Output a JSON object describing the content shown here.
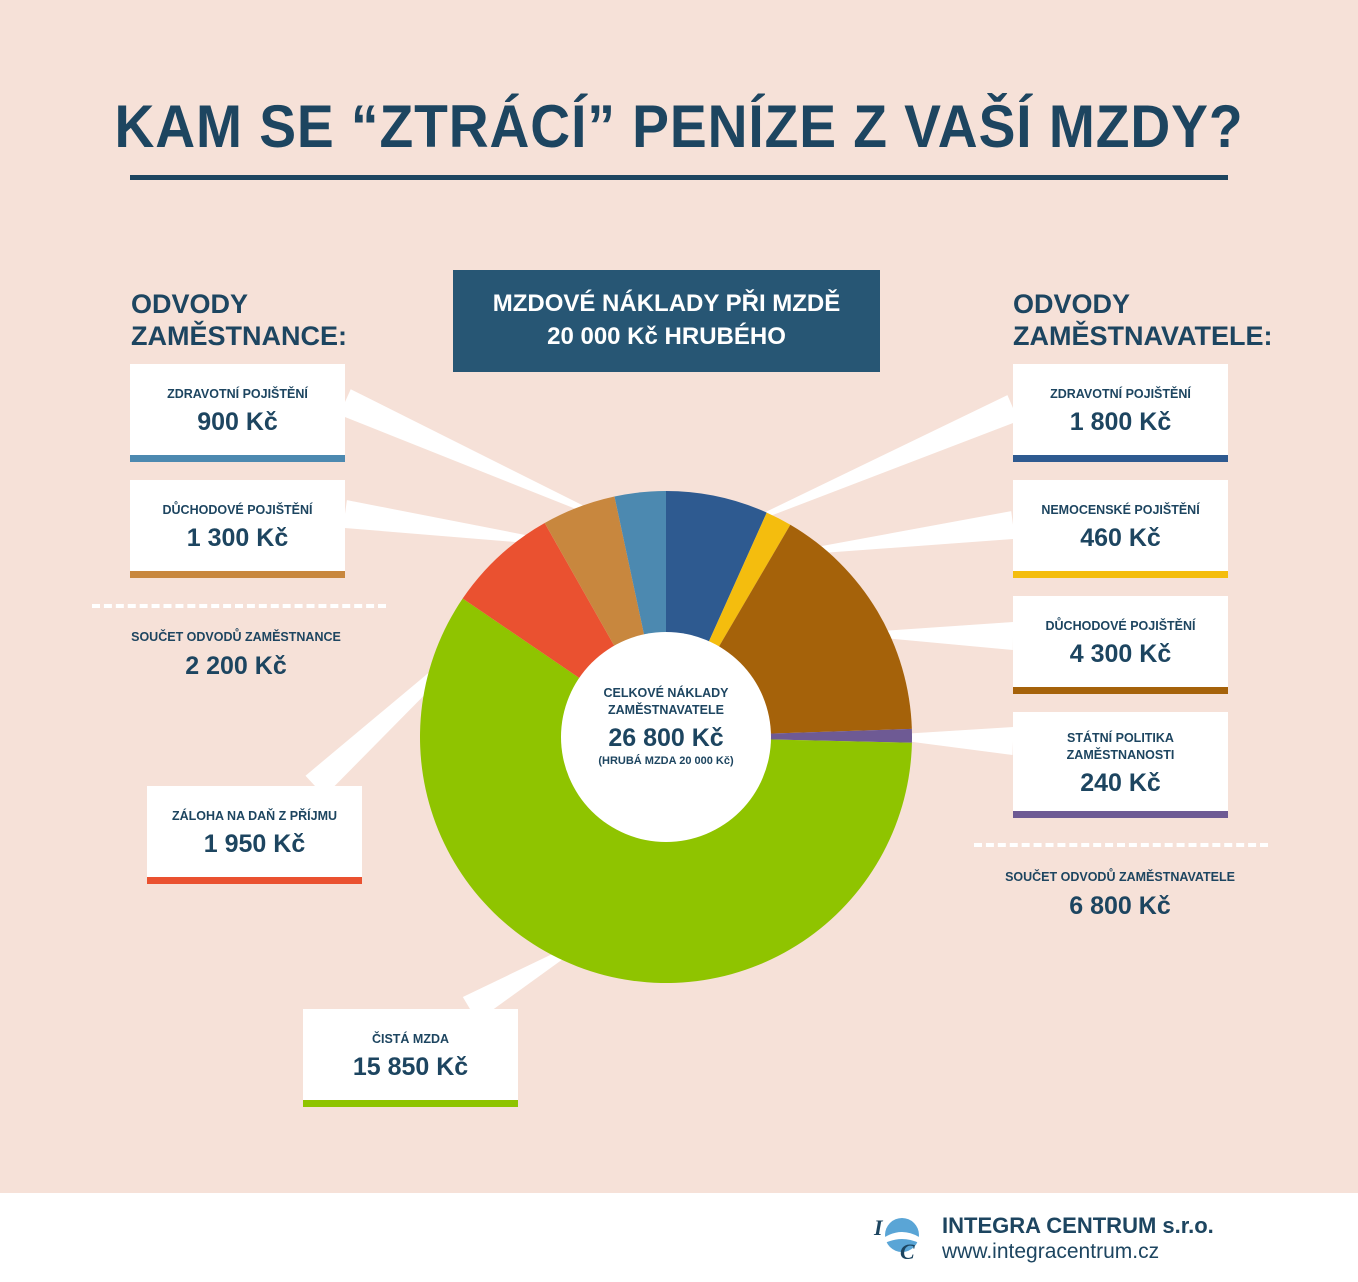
{
  "title": "KAM SE “ZTRÁCÍ” PENÍZE Z VAŠÍ MZDY?",
  "header_box": {
    "line1": "MZDOVÉ NÁKLADY PŘI MZDĚ",
    "line2": "20 000 Kč HRUBÉHO"
  },
  "employee": {
    "title_line1": "ODVODY",
    "title_line2": "ZAMĚSTNANCE:",
    "sum_label": "SOUČET ODVODŮ ZAMĚSTNANCE",
    "sum_value": "2 200 Kč"
  },
  "employer": {
    "title_line1": "ODVODY",
    "title_line2": "ZAMĚSTNAVATELE:",
    "sum_label": "SOUČET ODVODŮ ZAMĚSTNAVATELE",
    "sum_value": "6 800 Kč"
  },
  "center": {
    "label_line1": "CELKOVÉ NÁKLADY",
    "label_line2": "ZAMĚSTNAVATELE",
    "value": "26 800 Kč",
    "note": "(HRUBÁ MZDA 20 000 Kč)"
  },
  "cards": [
    {
      "id": "emp-health",
      "label": "ZDRAVOTNÍ POJIŠTĚNÍ",
      "label2": "",
      "value": "900 Kč",
      "color": "#4c89b0"
    },
    {
      "id": "emp-pension",
      "label": "DŮCHODOVÉ POJIŠTĚNÍ",
      "label2": "",
      "value": "1 300 Kč",
      "color": "#c8873e"
    },
    {
      "id": "income-tax",
      "label": "ZÁLOHA NA DAŇ Z PŘÍJMU",
      "label2": "",
      "value": "1 950 Kč",
      "color": "#ea5130"
    },
    {
      "id": "net-wage",
      "label": "ČISTÁ MZDA",
      "label2": "",
      "value": "15 850 Kč",
      "color": "#8fc400"
    },
    {
      "id": "er-health",
      "label": "ZDRAVOTNÍ POJIŠTĚNÍ",
      "label2": "",
      "value": "1 800 Kč",
      "color": "#2e5a90"
    },
    {
      "id": "er-sickness",
      "label": "NEMOCENSKÉ POJIŠTĚNÍ",
      "label2": "",
      "value": "460 Kč",
      "color": "#f4bd0e"
    },
    {
      "id": "er-pension",
      "label": "DŮCHODOVÉ POJIŠTĚNÍ",
      "label2": "",
      "value": "4 300 Kč",
      "color": "#a5620a"
    },
    {
      "id": "er-employment",
      "label": "STÁTNÍ POLITIKA",
      "label2": "ZAMĚSTNANOSTI",
      "value": "240 Kč",
      "color": "#6e5a94"
    }
  ],
  "chart_data": {
    "type": "pie",
    "categories": [
      "ZDRAVOTNÍ POJIŠTĚNÍ (zaměstnavatel)",
      "NEMOCENSKÉ POJIŠTĚNÍ",
      "DŮCHODOVÉ POJIŠTĚNÍ (zaměstnavatel)",
      "STÁTNÍ POLITIKA ZAMĚSTNANOSTI",
      "ČISTÁ MZDA",
      "ZÁLOHA NA DAŇ Z PŘÍJMU",
      "DŮCHODOVÉ POJIŠTĚNÍ (zaměstnanec)",
      "ZDRAVOTNÍ POJIŠTĚNÍ (zaměstnanec)"
    ],
    "values": [
      1800,
      460,
      4300,
      240,
      15850,
      1950,
      1300,
      900
    ],
    "colors": [
      "#2e5a90",
      "#f4bd0e",
      "#a5620a",
      "#6e5a94",
      "#8fc400",
      "#ea5130",
      "#c8873e",
      "#4c89b0"
    ],
    "total": 26800,
    "donut": true
  },
  "footer": {
    "company": "INTEGRA CENTRUM s.r.o.",
    "website": "www.integracentrum.cz",
    "logo_letters": "IC"
  }
}
